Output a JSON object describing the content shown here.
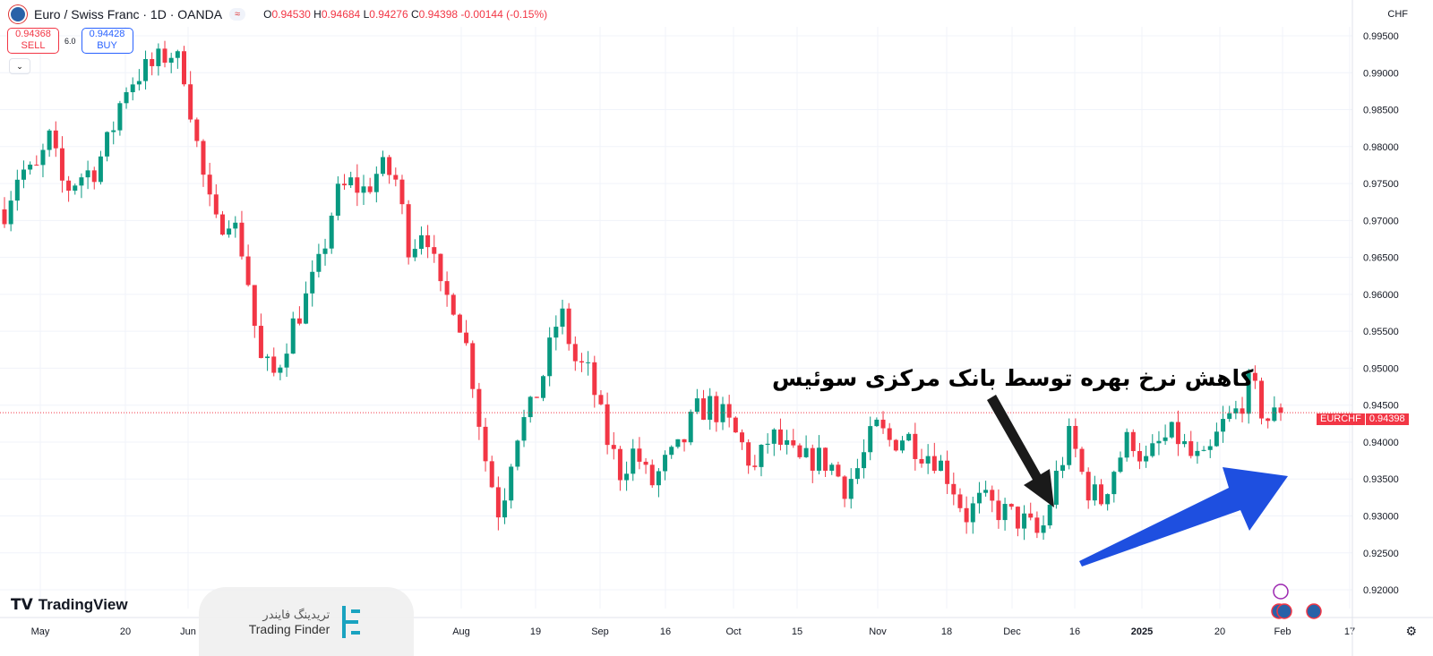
{
  "header": {
    "symbol_title": "Euro / Swiss Franc · 1D · OANDA",
    "indicator_pill": "≈",
    "ohlc": {
      "o_label": "O",
      "o": "0.94530",
      "h_label": "H",
      "h": "0.94684",
      "l_label": "L",
      "l": "0.94276",
      "c_label": "C",
      "c": "0.94398",
      "change": "-0.00144 (-0.15%)"
    }
  },
  "trade": {
    "sell_price": "0.94368",
    "sell_label": "SELL",
    "spread": "6.0",
    "buy_price": "0.94428",
    "buy_label": "BUY"
  },
  "collapse_icon": "chevron-down-icon",
  "currency": "CHF",
  "price_tag": {
    "symbol": "EURCHF",
    "value": "0.94398"
  },
  "annotation": "کاهش نرخ بهره توسط بانک مرکزی سوئیس",
  "branding": {
    "tradingview": "TradingView",
    "tf_fa": "تریدینگ فایندر",
    "tf_en": "Trading Finder"
  },
  "colors": {
    "up": "#089981",
    "down": "#f23645",
    "arrow_black": "#1a1a1a",
    "arrow_blue": "#1e4fe0"
  },
  "chart_data": {
    "type": "candlestick",
    "y_ticks": [
      "0.99500",
      "0.99000",
      "0.98500",
      "0.98000",
      "0.97500",
      "0.97000",
      "0.96500",
      "0.96000",
      "0.95500",
      "0.95000",
      "0.94500",
      "0.94000",
      "0.93500",
      "0.93000",
      "0.92500",
      "0.92000"
    ],
    "ylim": [
      0.9185,
      0.9965
    ],
    "x_ticks": [
      "May",
      "20",
      "Jun",
      "Aug",
      "19",
      "Sep",
      "16",
      "Oct",
      "15",
      "Nov",
      "18",
      "Dec",
      "16",
      "2025",
      "20",
      "Feb",
      "17"
    ],
    "close_samples": [
      0.9715,
      0.977,
      0.976,
      0.981,
      0.974,
      0.976,
      0.977,
      0.981,
      0.988,
      0.99,
      0.991,
      0.993,
      0.99,
      0.978,
      0.969,
      0.971,
      0.965,
      0.951,
      0.949,
      0.955,
      0.959,
      0.964,
      0.973,
      0.975,
      0.974,
      0.977,
      0.976,
      0.966,
      0.97,
      0.96,
      0.959,
      0.951,
      0.938,
      0.93,
      0.941,
      0.944,
      0.95,
      0.958,
      0.951,
      0.949,
      0.941,
      0.936,
      0.939,
      0.934,
      0.937,
      0.939,
      0.944,
      0.945,
      0.943,
      0.94,
      0.936,
      0.941,
      0.939,
      0.937,
      0.938,
      0.937,
      0.934,
      0.937,
      0.942,
      0.94,
      0.941,
      0.939,
      0.938,
      0.935,
      0.93,
      0.932,
      0.931,
      0.93,
      0.929,
      0.927,
      0.935,
      0.941,
      0.934,
      0.932,
      0.937,
      0.941,
      0.937,
      0.94,
      0.941,
      0.938,
      0.937,
      0.942,
      0.944,
      0.948,
      0.943,
      0.94398
    ],
    "last_price": 0.94398
  }
}
